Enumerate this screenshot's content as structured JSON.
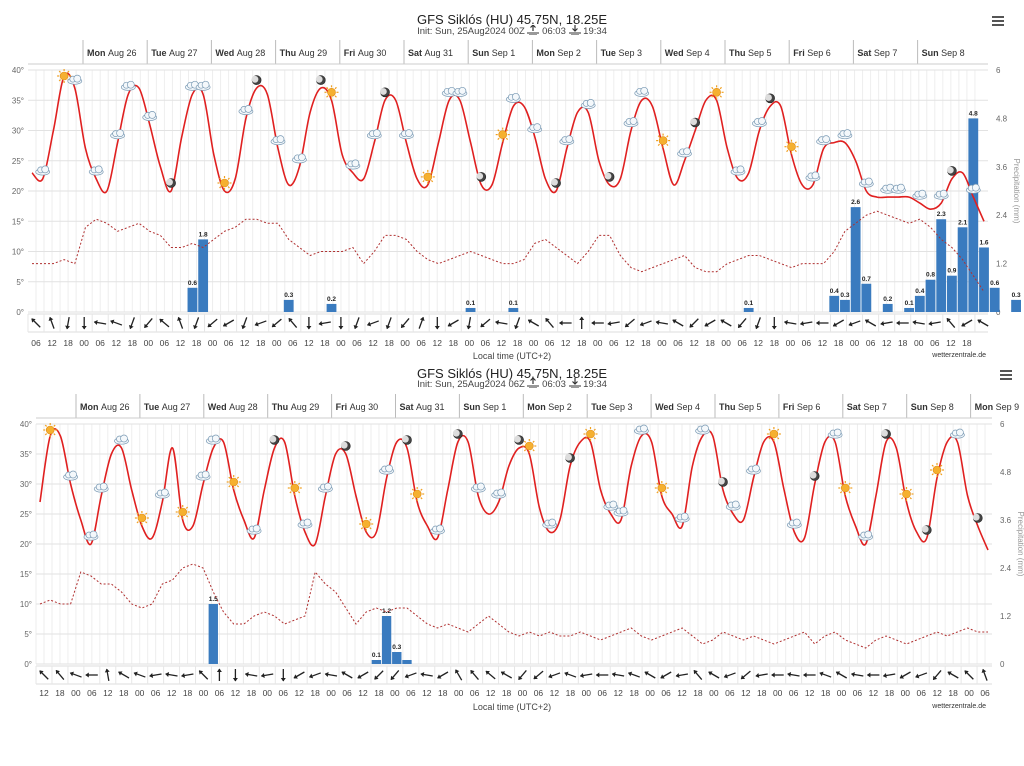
{
  "chart_data": [
    {
      "type": "line",
      "title": "GFS Siklós (HU) 45.75N, 18.25E",
      "subtitle_init": "Init: Sun, 25Aug2024 00Z",
      "sunrise": "06:03",
      "sunset": "19:34",
      "y_left_ticks": [
        "0°",
        "5°",
        "10°",
        "15°",
        "20°",
        "25°",
        "30°",
        "35°",
        "40°"
      ],
      "y_right_ticks": [
        "0",
        "1.2",
        "2.4",
        "3.6",
        "4.8",
        "6"
      ],
      "y_right_label": "Precipitation (mm)",
      "xlabel": "Local time (UTC+2)",
      "credit": "wetterzentrale.de",
      "day_labels": [
        {
          "wd": "Mon",
          "d": "Aug 26"
        },
        {
          "wd": "Tue",
          "d": "Aug 27"
        },
        {
          "wd": "Wed",
          "d": "Aug 28"
        },
        {
          "wd": "Thu",
          "d": "Aug 29"
        },
        {
          "wd": "Fri",
          "d": "Aug 30"
        },
        {
          "wd": "Sat",
          "d": "Aug 31"
        },
        {
          "wd": "Sun",
          "d": "Sep 1"
        },
        {
          "wd": "Mon",
          "d": "Sep 2"
        },
        {
          "wd": "Tue",
          "d": "Sep 3"
        },
        {
          "wd": "Wed",
          "d": "Sep 4"
        },
        {
          "wd": "Thu",
          "d": "Sep 5"
        },
        {
          "wd": "Fri",
          "d": "Sep 6"
        },
        {
          "wd": "Sat",
          "d": "Sep 7"
        },
        {
          "wd": "Sun",
          "d": "Sep 8"
        }
      ],
      "hour_labels": [
        "06",
        "12",
        "18",
        "00",
        "06",
        "12",
        "18",
        "00",
        "06",
        "12",
        "18",
        "00",
        "06",
        "12",
        "18",
        "00",
        "06",
        "12",
        "18",
        "00",
        "06",
        "12",
        "18",
        "00",
        "06",
        "12",
        "18",
        "00",
        "06",
        "12",
        "18",
        "00",
        "06",
        "12",
        "18",
        "00",
        "06",
        "12",
        "18",
        "00",
        "06",
        "12",
        "18",
        "00",
        "06",
        "12",
        "18",
        "00",
        "06",
        "12",
        "18",
        "00",
        "06",
        "12",
        "18",
        "00",
        "06",
        "12",
        "18"
      ],
      "temperature": [
        23,
        22,
        30,
        39,
        37,
        27,
        22,
        20,
        28,
        36,
        37,
        31,
        24,
        20,
        29,
        36,
        36,
        26,
        20,
        22,
        32,
        37,
        36,
        27,
        21,
        24,
        33,
        37,
        35,
        26,
        23,
        22,
        28,
        35,
        35,
        28,
        22,
        21,
        28,
        35,
        35,
        28,
        21,
        21,
        28,
        34,
        34,
        29,
        22,
        20,
        27,
        33,
        33,
        25,
        21,
        22,
        30,
        35,
        34,
        27,
        21,
        25,
        30,
        35,
        35,
        27,
        22,
        23,
        30,
        34,
        34,
        26,
        21,
        21,
        27,
        28,
        28,
        25,
        20,
        19,
        19,
        19,
        19,
        18,
        17,
        18,
        22,
        23,
        19,
        15
      ],
      "dewpoint_mm_scale": [
        1.2,
        1.2,
        1.2,
        1.3,
        1.2,
        2.1,
        2.3,
        2.2,
        2.0,
        2.1,
        2.2,
        2.0,
        1.9,
        1.6,
        1.6,
        1.7,
        1.6,
        1.8,
        2.0,
        2.1,
        2.3,
        2.3,
        2.2,
        2.2,
        1.8,
        1.6,
        1.4,
        1.5,
        1.5,
        1.5,
        1.6,
        1.2,
        1.5,
        1.9,
        1.9,
        1.8,
        1.5,
        1.3,
        1.2,
        1.3,
        1.4,
        1.5,
        1.4,
        1.3,
        1.2,
        1.2,
        1.3,
        1.7,
        1.8,
        1.6,
        1.4,
        1.2,
        1.5,
        1.9,
        1.9,
        1.4,
        1.1,
        1.0,
        1.1,
        1.2,
        1.3,
        1.4,
        1.1,
        1.0,
        1.0,
        1.2,
        1.3,
        1.4,
        1.4,
        1.3,
        1.2,
        1.1,
        1.2,
        1.2,
        1.2,
        1.5,
        2.0,
        2.2,
        2.4,
        2.5,
        2.4,
        2.3,
        2.2,
        2.3,
        2.1,
        1.8,
        1.6,
        1.3,
        0.9,
        0.5
      ],
      "precip_bars": [
        {
          "i": 15,
          "v": 0.6,
          "label": "0.6"
        },
        {
          "i": 16,
          "v": 1.8,
          "label": "1.8"
        },
        {
          "i": 24,
          "v": 0.3,
          "label": "0.3"
        },
        {
          "i": 28,
          "v": 0.2,
          "label": "0.2"
        },
        {
          "i": 41,
          "v": 0.1,
          "label": "0.1"
        },
        {
          "i": 45,
          "v": 0.1,
          "label": "0.1"
        },
        {
          "i": 67,
          "v": 0.1,
          "label": "0.1"
        },
        {
          "i": 75,
          "v": 0.4,
          "label": "0.4"
        },
        {
          "i": 76,
          "v": 0.3,
          "label": "0.3"
        },
        {
          "i": 77,
          "v": 2.6,
          "label": "2.6"
        },
        {
          "i": 78,
          "v": 0.7,
          "label": "0.7"
        },
        {
          "i": 80,
          "v": 0.2,
          "label": "0.2"
        },
        {
          "i": 82,
          "v": 0.1,
          "label": "0.1"
        },
        {
          "i": 83,
          "v": 0.4,
          "label": "0.4"
        },
        {
          "i": 84,
          "v": 0.8,
          "label": "0.8"
        },
        {
          "i": 85,
          "v": 2.3,
          "label": "2.3"
        },
        {
          "i": 86,
          "v": 0.9,
          "label": "0.9"
        },
        {
          "i": 87,
          "v": 2.1,
          "label": "2.1"
        },
        {
          "i": 88,
          "v": 4.8,
          "label": "4.8"
        },
        {
          "i": 89,
          "v": 1.6,
          "label": "1.6"
        },
        {
          "i": 90,
          "v": 0.6,
          "label": "0.6"
        },
        {
          "i": 92,
          "v": 0.3,
          "label": "0.3"
        }
      ],
      "wind_angles": [
        135,
        160,
        10,
        0,
        100,
        110,
        20,
        40,
        130,
        160,
        20,
        50,
        60,
        20,
        70,
        50,
        140,
        0,
        80,
        0,
        20,
        70,
        20,
        40,
        200,
        0,
        60,
        10,
        50,
        100,
        20,
        120,
        140,
        90,
        180,
        90,
        80,
        50,
        70,
        100,
        120,
        45,
        60,
        120,
        40,
        20,
        0,
        100,
        80,
        90,
        60,
        70,
        120,
        80,
        90,
        100,
        80,
        140,
        60,
        120
      ],
      "weather_icons": [
        "cloud",
        "sun",
        "cloud",
        "cloud",
        "cloud",
        "cloud",
        "cloud",
        "moon",
        "cloud",
        "cloud",
        "sun",
        "cloud",
        "moon",
        "cloud",
        "cloud",
        "moon",
        "sun",
        "cloud",
        "cloud",
        "moon",
        "cloud",
        "sun",
        "cloud",
        "cloud",
        "moon",
        "sun",
        "cloud",
        "cloud",
        "moon",
        "cloud",
        "cloud",
        "moon",
        "cloud",
        "cloud",
        "sun",
        "cloud",
        "moon",
        "sun",
        "cloud",
        "cloud",
        "moon",
        "sun",
        "cloud",
        "cloud",
        "cloud",
        "cloud",
        "cloud",
        "cloud",
        "cloud",
        "cloud",
        "moon",
        "cloud"
      ]
    },
    {
      "type": "line",
      "title": "GFS Siklós (HU) 45.75N, 18.25E",
      "subtitle_init": "Init: Sun, 25Aug2024 06Z",
      "sunrise": "06:03",
      "sunset": "19:34",
      "y_left_ticks": [
        "0°",
        "5°",
        "10°",
        "15°",
        "20°",
        "25°",
        "30°",
        "35°",
        "40°"
      ],
      "y_right_ticks": [
        "0",
        "1.2",
        "2.4",
        "3.6",
        "4.8",
        "6"
      ],
      "y_right_label": "Precipitation (mm)",
      "xlabel": "Local time (UTC+2)",
      "credit": "wetterzentrale.de",
      "day_labels": [
        {
          "wd": "Mon",
          "d": "Aug 26"
        },
        {
          "wd": "Tue",
          "d": "Aug 27"
        },
        {
          "wd": "Wed",
          "d": "Aug 28"
        },
        {
          "wd": "Thu",
          "d": "Aug 29"
        },
        {
          "wd": "Fri",
          "d": "Aug 30"
        },
        {
          "wd": "Sat",
          "d": "Aug 31"
        },
        {
          "wd": "Sun",
          "d": "Sep 1"
        },
        {
          "wd": "Mon",
          "d": "Sep 2"
        },
        {
          "wd": "Tue",
          "d": "Sep 3"
        },
        {
          "wd": "Wed",
          "d": "Sep 4"
        },
        {
          "wd": "Thu",
          "d": "Sep 5"
        },
        {
          "wd": "Fri",
          "d": "Sep 6"
        },
        {
          "wd": "Sat",
          "d": "Sep 7"
        },
        {
          "wd": "Sun",
          "d": "Sep 8"
        },
        {
          "wd": "Mon",
          "d": "Sep 9"
        }
      ],
      "hour_labels": [
        "12",
        "18",
        "00",
        "06",
        "12",
        "18",
        "00",
        "06",
        "12",
        "18",
        "00",
        "06",
        "12",
        "18",
        "00",
        "06",
        "12",
        "18",
        "00",
        "06",
        "12",
        "18",
        "00",
        "06",
        "12",
        "18",
        "00",
        "06",
        "12",
        "18",
        "00",
        "06",
        "12",
        "18",
        "00",
        "06",
        "12",
        "18",
        "00",
        "06",
        "12",
        "18",
        "00",
        "06",
        "12",
        "18",
        "00",
        "06",
        "12",
        "18",
        "00",
        "06",
        "12",
        "18",
        "00",
        "06",
        "12",
        "18",
        "00",
        "06",
        "12",
        "18"
      ],
      "temperature": [
        27,
        38,
        38,
        30,
        24,
        20,
        28,
        35,
        36,
        29,
        23,
        21,
        27,
        36,
        24,
        23,
        30,
        36,
        37,
        29,
        24,
        21,
        29,
        36,
        37,
        28,
        22,
        20,
        28,
        35,
        35,
        28,
        22,
        22,
        31,
        37,
        36,
        27,
        23,
        21,
        29,
        37,
        37,
        28,
        25,
        27,
        33,
        36,
        35,
        26,
        22,
        24,
        33,
        37,
        37,
        29,
        25,
        24,
        33,
        38,
        37,
        28,
        25,
        23,
        33,
        38,
        38,
        29,
        25,
        24,
        31,
        37,
        37,
        29,
        22,
        21,
        30,
        37,
        37,
        28,
        23,
        20,
        28,
        37,
        36,
        27,
        22,
        21,
        31,
        37,
        37,
        28,
        23,
        19
      ],
      "dewpoint_mm_scale": [
        1.5,
        1.6,
        1.5,
        1.5,
        2.3,
        2.2,
        2.0,
        2.0,
        1.8,
        1.5,
        1.4,
        1.5,
        2.0,
        2.1,
        2.4,
        2.5,
        2.4,
        1.8,
        1.3,
        1.0,
        1.0,
        1.2,
        1.3,
        1.2,
        1.0,
        1.1,
        1.2,
        2.3,
        2.0,
        1.8,
        1.4,
        1.0,
        1.3,
        1.4,
        1.3,
        1.4,
        1.4,
        1.2,
        1.0,
        0.9,
        1.0,
        0.9,
        0.8,
        1.0,
        1.2,
        1.0,
        0.8,
        0.7,
        0.8,
        0.7,
        0.8,
        0.7,
        0.7,
        0.8,
        0.7,
        0.6,
        0.7,
        0.8,
        0.9,
        0.7,
        0.6,
        0.7,
        0.8,
        0.9,
        0.7,
        0.5,
        0.6,
        0.8,
        0.7,
        0.6,
        0.7,
        0.6,
        0.5,
        0.6,
        0.7,
        0.8,
        0.5,
        0.7,
        0.8,
        0.6,
        0.5,
        0.4,
        0.6,
        0.7,
        0.6,
        0.5,
        0.6,
        0.7,
        0.8,
        0.7,
        0.8,
        0.9,
        0.8,
        0.8
      ],
      "precip_bars": [
        {
          "i": 17,
          "v": 1.5,
          "label": "1.5"
        },
        {
          "i": 33,
          "v": 0.1,
          "label": "0.1"
        },
        {
          "i": 34,
          "v": 1.2,
          "label": "1.2"
        },
        {
          "i": 35,
          "v": 0.3,
          "label": "0.3"
        },
        {
          "i": 36,
          "v": 0.1,
          "label": ""
        }
      ],
      "wind_angles": [
        135,
        140,
        110,
        90,
        170,
        120,
        110,
        80,
        100,
        80,
        135,
        180,
        0,
        100,
        80,
        0,
        60,
        70,
        100,
        120,
        60,
        45,
        40,
        70,
        100,
        60,
        150,
        140,
        130,
        120,
        40,
        50,
        70,
        110,
        80,
        90,
        100,
        110,
        120,
        60,
        80,
        140,
        120,
        70,
        50,
        80,
        90,
        100,
        90,
        110,
        120,
        100,
        90,
        80,
        60,
        70,
        40,
        120,
        135,
        160,
        10,
        0
      ],
      "weather_icons": [
        "sun",
        "cloud",
        "cloud",
        "cloud",
        "cloud",
        "sun",
        "cloud",
        "sun",
        "cloud",
        "cloud",
        "sun",
        "cloud",
        "moon",
        "sun",
        "cloud",
        "cloud",
        "moon",
        "sun",
        "cloud",
        "moon",
        "sun",
        "cloud",
        "moon",
        "cloud",
        "cloud",
        "moon",
        "sun",
        "cloud",
        "moon",
        "sun",
        "cloud",
        "cloud",
        "cloud",
        "sun",
        "cloud",
        "cloud",
        "moon",
        "cloud",
        "cloud",
        "sun",
        "cloud",
        "moon",
        "cloud",
        "sun",
        "cloud",
        "moon",
        "sun",
        "moon",
        "sun",
        "cloud",
        "moon"
      ]
    }
  ]
}
